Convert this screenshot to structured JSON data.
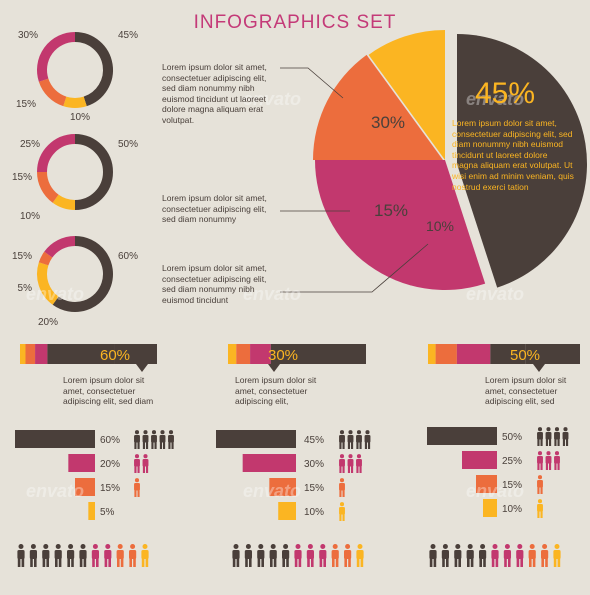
{
  "title": "INFOGRAPHICS SET",
  "colors": {
    "background": "#e6e2d9",
    "dark": "#4a3f3a",
    "magenta": "#c2386e",
    "orange": "#ec6d3d",
    "yellow": "#fbb522",
    "title": "#c43a78",
    "text": "#4a403b"
  },
  "watermark": "envato",
  "chart_data": [
    {
      "type": "pie",
      "values": [
        45,
        30,
        15,
        10
      ],
      "labels": [
        "45%",
        "30%",
        "15%",
        "10%"
      ],
      "highlight_text": [
        "Lorem ipsum dolor sit amet,",
        "consectetuer adipiscing elit, sed",
        "diam nonummy nibh euismod",
        "tincidunt ut laoreet dolore",
        "magna aliquam erat volutpat. Ut",
        "wisi enim ad minim veniam, quis",
        "nostrud exerci tation"
      ],
      "callouts": [
        [
          "Lorem ipsum dolor sit amet,",
          "consectetuer adipiscing elit,",
          "sed diam nonummy nibh",
          "euismod tincidunt ut laoreet",
          "dolore magna aliquam erat",
          "volutpat."
        ],
        [
          "Lorem ipsum dolor sit amet,",
          "consectetuer adipiscing elit,",
          "sed diam nonummy"
        ],
        [
          "Lorem ipsum dolor sit amet,",
          "consectetuer adipiscing elit,",
          "sed diam nonummy nibh",
          "euismod tincidunt"
        ]
      ]
    },
    {
      "type": "pie",
      "variant": "donut-list",
      "donuts": [
        {
          "values": [
            45,
            30,
            15,
            10
          ],
          "labels": [
            "45%",
            "30%",
            "15%",
            "10%"
          ]
        },
        {
          "values": [
            50,
            25,
            15,
            10
          ],
          "labels": [
            "50%",
            "25%",
            "15%",
            "10%"
          ]
        },
        {
          "values": [
            60,
            15,
            5,
            20
          ],
          "labels": [
            "60%",
            "15%",
            "5%",
            "20%"
          ]
        }
      ]
    },
    {
      "type": "bar",
      "variant": "stacked-strips",
      "strips": [
        {
          "label": "60%",
          "values": [
            4,
            7,
            9,
            49,
            31
          ],
          "text": [
            "Lorem ipsum dolor sit",
            "amet, consectetuer",
            "adipiscing elit, sed diam"
          ]
        },
        {
          "label": "30%",
          "values": [
            6,
            10,
            15,
            69
          ],
          "text": [
            "Lorem ipsum dolor sit",
            "amet, consectetuer",
            "adipiscing elit,"
          ]
        },
        {
          "label": "50%",
          "values": [
            5,
            14,
            22,
            23,
            36
          ],
          "text": [
            "Lorem ipsum dolor sit",
            "amet, consectetuer",
            "adipiscing elit, sed"
          ]
        }
      ]
    },
    {
      "type": "bar",
      "variant": "funnel",
      "groups": [
        {
          "values": [
            60,
            20,
            15,
            5
          ],
          "labels": [
            "60%",
            "20%",
            "15%",
            "5%"
          ],
          "people": [
            5,
            2,
            1,
            0
          ]
        },
        {
          "values": [
            45,
            30,
            15,
            10
          ],
          "labels": [
            "45%",
            "30%",
            "15%",
            "10%"
          ],
          "people": [
            4,
            3,
            1,
            1
          ]
        },
        {
          "values": [
            50,
            25,
            15,
            10
          ],
          "labels": [
            "50%",
            "25%",
            "15%",
            "10%"
          ],
          "people": [
            4,
            3,
            1,
            1
          ]
        }
      ]
    },
    {
      "type": "bar",
      "variant": "people-rows",
      "groups": [
        [
          6,
          2,
          2,
          1
        ],
        [
          5,
          3,
          2,
          1
        ],
        [
          5,
          3,
          2,
          1
        ]
      ]
    }
  ]
}
